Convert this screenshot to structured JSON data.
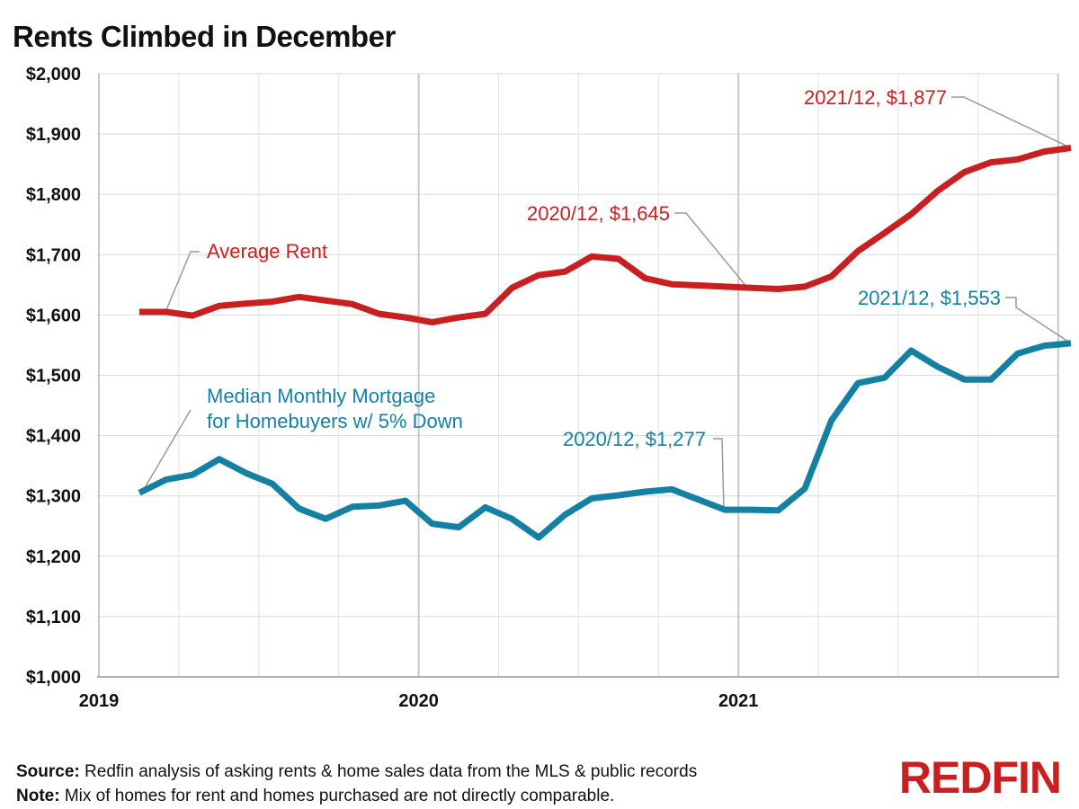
{
  "title": "Rents Climbed in December",
  "footer": {
    "source_label": "Source:",
    "source_text": "Redfin analysis of asking rents & home sales data from the MLS & public records",
    "note_label": "Note:",
    "note_text": "Mix of homes for rent and homes purchased are not directly comparable."
  },
  "logo_text": "REDFIN",
  "colors": {
    "rent": "#c82021",
    "mortgage": "#1481a3",
    "grid": "#d9d9d9",
    "leader": "#999999"
  },
  "chart_data": {
    "type": "line",
    "title": "Rents Climbed in December",
    "xlabel": "",
    "ylabel": "",
    "ylim": [
      1000,
      2000
    ],
    "y_ticks": [
      "$1,000",
      "$1,100",
      "$1,200",
      "$1,300",
      "$1,400",
      "$1,500",
      "$1,600",
      "$1,700",
      "$1,800",
      "$1,900",
      "$2,000"
    ],
    "x_tick_labels": [
      "2019",
      "2020",
      "2021"
    ],
    "x": [
      "2019/01",
      "2019/02",
      "2019/03",
      "2019/04",
      "2019/05",
      "2019/06",
      "2019/07",
      "2019/08",
      "2019/09",
      "2019/10",
      "2019/11",
      "2019/12",
      "2020/01",
      "2020/02",
      "2020/03",
      "2020/04",
      "2020/05",
      "2020/06",
      "2020/07",
      "2020/08",
      "2020/09",
      "2020/10",
      "2020/11",
      "2020/12",
      "2021/01",
      "2021/02",
      "2021/03",
      "2021/04",
      "2021/05",
      "2021/06",
      "2021/07",
      "2021/08",
      "2021/09",
      "2021/10",
      "2021/11",
      "2021/12"
    ],
    "grid": true,
    "series": [
      {
        "name": "Average Rent",
        "values": [
          1605,
          1605,
          1599,
          1615,
          1619,
          1622,
          1630,
          1624,
          1618,
          1602,
          1596,
          1588,
          1596,
          1602,
          1645,
          1666,
          1672,
          1697,
          1693,
          1661,
          1651,
          1649,
          1647,
          1645,
          1643,
          1647,
          1664,
          1706,
          1736,
          1767,
          1806,
          1837,
          1853,
          1858,
          1871,
          1877
        ]
      },
      {
        "name": "Median Monthly Mortgage for Homebuyers w/ 5% Down",
        "values": [
          1305,
          1327,
          1335,
          1361,
          1338,
          1320,
          1279,
          1262,
          1282,
          1284,
          1292,
          1254,
          1248,
          1281,
          1262,
          1231,
          1269,
          1296,
          1301,
          1307,
          1311,
          1294,
          1277,
          1277,
          1276,
          1312,
          1425,
          1487,
          1496,
          1541,
          1514,
          1493,
          1493,
          1536,
          1549,
          1553
        ]
      }
    ],
    "annotations": [
      {
        "series": 0,
        "label": "2020/12, $1,645"
      },
      {
        "series": 0,
        "label": "2021/12, $1,877"
      },
      {
        "series": 1,
        "label": "2020/12, $1,277"
      },
      {
        "series": 1,
        "label": "2021/12, $1,553"
      }
    ],
    "legend": [
      "Average Rent",
      "Median Monthly Mortgage",
      "for Homebuyers w/ 5% Down"
    ]
  }
}
